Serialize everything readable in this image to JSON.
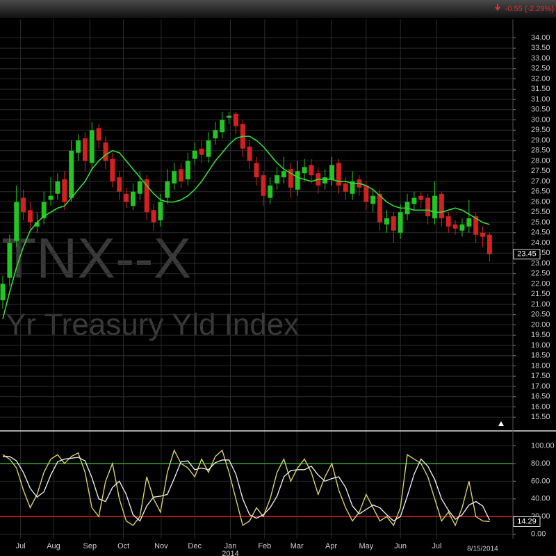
{
  "header": {
    "change": "-0.55 (-2.29%)"
  },
  "chart_data": [
    {
      "type": "candlestick",
      "watermark": [
        "TNX--X",
        "Yr Treasury Yld Index"
      ],
      "year_label": "2014",
      "last_date": "8/15/2014",
      "up_color": "#22c522",
      "down_color": "#d42020",
      "grid": true,
      "xlim": [
        0,
        74
      ],
      "xticks": [
        {
          "value": 2.6,
          "label": "Jul"
        },
        {
          "value": 7.4,
          "label": "Aug"
        },
        {
          "value": 12.7,
          "label": "Sep"
        },
        {
          "value": 17.6,
          "label": "Oct"
        },
        {
          "value": 23.1,
          "label": "Nov"
        },
        {
          "value": 28,
          "label": "Dec"
        },
        {
          "value": 33.2,
          "label": "Jan"
        },
        {
          "value": 38.2,
          "label": "Feb"
        },
        {
          "value": 42.9,
          "label": "Mar"
        },
        {
          "value": 47.9,
          "label": "Apr"
        },
        {
          "value": 53,
          "label": "May"
        },
        {
          "value": 58,
          "label": "Jun"
        },
        {
          "value": 63.3,
          "label": "Jul"
        }
      ],
      "ylim": [
        15,
        34.9
      ],
      "yticks": [
        {
          "value": 15.5,
          "label": "15.50"
        },
        {
          "value": 16,
          "label": "16.00"
        },
        {
          "value": 16.5,
          "label": "16.50"
        },
        {
          "value": 17,
          "label": "17.00"
        },
        {
          "value": 17.5,
          "label": "17.50"
        },
        {
          "value": 18,
          "label": "18.00"
        },
        {
          "value": 18.5,
          "label": "18.50"
        },
        {
          "value": 19,
          "label": "19.00"
        },
        {
          "value": 19.5,
          "label": "19.50"
        },
        {
          "value": 20,
          "label": "20.00"
        },
        {
          "value": 20.5,
          "label": "20.50"
        },
        {
          "value": 21,
          "label": "21.00"
        },
        {
          "value": 21.5,
          "label": "21.50"
        },
        {
          "value": 22,
          "label": "22.00"
        },
        {
          "value": 22.5,
          "label": "22.50"
        },
        {
          "value": 23,
          "label": "23.00"
        },
        {
          "value": 23.5,
          "label": "23.50"
        },
        {
          "value": 24,
          "label": "24.00"
        },
        {
          "value": 24.5,
          "label": "24.50"
        },
        {
          "value": 25,
          "label": "25.00"
        },
        {
          "value": 25.5,
          "label": "25.50"
        },
        {
          "value": 26,
          "label": "26.00"
        },
        {
          "value": 26.5,
          "label": "26.50"
        },
        {
          "value": 27,
          "label": "27.00"
        },
        {
          "value": 27.5,
          "label": "27.50"
        },
        {
          "value": 28,
          "label": "28.00"
        },
        {
          "value": 28.5,
          "label": "28.50"
        },
        {
          "value": 29,
          "label": "29.00"
        },
        {
          "value": 29.5,
          "label": "29.50"
        },
        {
          "value": 30,
          "label": "30.00"
        },
        {
          "value": 30.5,
          "label": "30.50"
        },
        {
          "value": 31,
          "label": "31.00"
        },
        {
          "value": 31.5,
          "label": "31.50"
        },
        {
          "value": 32,
          "label": "32.00"
        },
        {
          "value": 32.5,
          "label": "32.50"
        },
        {
          "value": 33,
          "label": "33.00"
        },
        {
          "value": 33.5,
          "label": "33.50"
        },
        {
          "value": 34,
          "label": "34.00"
        }
      ],
      "open": [
        21.2,
        22.3,
        24.1,
        26.2,
        25.6,
        24.8,
        25.2,
        26.1,
        26.4,
        27.1,
        26.2,
        28.4,
        29.1,
        27.9,
        29.6,
        28.9,
        28.1,
        27.2,
        26.4,
        25.8,
        26.4,
        27.1,
        25.6,
        25.1,
        26.2,
        26.9,
        27.6,
        27.1,
        28.1,
        28.6,
        28.2,
        29.1,
        29.4,
        30.1,
        30.3,
        29.8,
        28.7,
        27.9,
        27.3,
        26.2,
        26.9,
        27.2,
        27.6,
        26.6,
        27.4,
        27.8,
        27.4,
        26.9,
        27.1,
        27.9,
        26.9,
        26.4,
        27.1,
        26.8,
        25.9,
        26.4,
        24.9,
        25.3,
        24.5,
        25.4,
        25.9,
        26.3,
        26.2,
        25.2,
        26.4,
        25.3,
        24.9,
        24.6,
        24.8,
        25.3,
        24.5,
        24.4
      ],
      "high": [
        22.4,
        24.4,
        26.8,
        26.6,
        26,
        25.5,
        26.5,
        27.2,
        27.4,
        27.5,
        29,
        29.3,
        29.4,
        29.9,
        29.8,
        29.2,
        28.4,
        27.5,
        26.7,
        26.9,
        27.5,
        27.3,
        25.9,
        26.4,
        27.6,
        27.9,
        27.9,
        28.4,
        28.9,
        29,
        29.4,
        29.9,
        30.4,
        30.4,
        30.4,
        30,
        29,
        28.2,
        27.5,
        27.2,
        27.7,
        28.2,
        27.9,
        28,
        28.1,
        28.1,
        27.7,
        27.6,
        28.2,
        28.1,
        27.2,
        27.5,
        27.3,
        27,
        26.6,
        26.6,
        25.6,
        25.5,
        25.9,
        26.4,
        26.5,
        26.5,
        26.4,
        27,
        26.5,
        25.5,
        25.1,
        25.2,
        26.1,
        25.5,
        24.8,
        24.5
      ],
      "low": [
        20.8,
        21.9,
        23.8,
        25.1,
        24.6,
        24.5,
        24.9,
        25.8,
        26.1,
        25.6,
        26,
        28,
        27.5,
        27.6,
        28.6,
        27.6,
        26.7,
        26.1,
        25.7,
        25.6,
        26.1,
        25.1,
        24.6,
        24.8,
        25.9,
        26.6,
        26.7,
        26.8,
        27.8,
        27.9,
        27.9,
        28.8,
        29.1,
        29.8,
        29.3,
        28.2,
        27.6,
        26.8,
        25.8,
        25.9,
        26.6,
        26.9,
        26.2,
        26.3,
        27,
        26.9,
        26.4,
        26.6,
        26.8,
        26.4,
        26.1,
        26.1,
        26.3,
        25.6,
        25.5,
        24.6,
        24.5,
        24,
        24.2,
        25.1,
        25.6,
        25.7,
        24.9,
        24.9,
        24.8,
        24.5,
        24.4,
        24.3,
        24.5,
        24,
        23.8,
        23.1
      ],
      "close": [
        22,
        24,
        26,
        25.5,
        25,
        25,
        26,
        26.3,
        27,
        26,
        28.5,
        29,
        28,
        29.5,
        29,
        28,
        27,
        26.5,
        26,
        26.5,
        27,
        25.5,
        25,
        26,
        27,
        27.5,
        27,
        28,
        28.5,
        28.3,
        29,
        29.5,
        30,
        30.2,
        29.7,
        28.6,
        28,
        27.2,
        26.3,
        26.8,
        27.3,
        27.5,
        26.7,
        27.5,
        27.7,
        27.3,
        26.8,
        27.2,
        27.8,
        26.8,
        26.5,
        27,
        26.7,
        26,
        26.3,
        25,
        25.2,
        24.6,
        25.5,
        26,
        26.2,
        26.1,
        25.3,
        26.3,
        25.2,
        24.8,
        24.7,
        24.9,
        25.2,
        24.4,
        24.3,
        23.45
      ],
      "ma": {
        "color": "#33dd33",
        "values": [
          20.3,
          21.6,
          22.8,
          23.8,
          24.6,
          25,
          25.3,
          25.5,
          25.7,
          25.8,
          26.2,
          26.6,
          27,
          27.6,
          28,
          28.3,
          28.5,
          28.4,
          28,
          27.6,
          27.2,
          26.8,
          26.4,
          26.1,
          26,
          26,
          26.1,
          26.3,
          26.6,
          27,
          27.5,
          28,
          28.4,
          28.8,
          29.1,
          29.2,
          29.2,
          29,
          28.7,
          28.3,
          27.9,
          27.6,
          27.4,
          27.2,
          27.1,
          27,
          27.1,
          27.1,
          27.1,
          27,
          27,
          26.9,
          26.9,
          26.8,
          26.6,
          26.3,
          26,
          25.8,
          25.7,
          25.7,
          25.6,
          25.6,
          25.6,
          25.5,
          25.5,
          25.6,
          25.7,
          25.6,
          25.4,
          25.2,
          25,
          24.9
        ]
      }
    },
    {
      "type": "line",
      "grid": true,
      "xlim": [
        0,
        74
      ],
      "ylim": [
        -5,
        113
      ],
      "yticks": [
        {
          "value": 0,
          "label": "0.00"
        },
        {
          "value": 20,
          "label": "20.00"
        },
        {
          "value": 40,
          "label": "40.00"
        },
        {
          "value": 60,
          "label": "60.00"
        },
        {
          "value": 80,
          "label": "80.00"
        },
        {
          "value": 100,
          "label": "100.00"
        }
      ],
      "levels": [
        {
          "value": 80,
          "color": "#2fa82f"
        },
        {
          "value": 20,
          "color": "#c81e1e"
        }
      ],
      "series": [
        {
          "color": "#d8d060",
          "values": [
            90,
            85,
            75,
            50,
            30,
            45,
            70,
            85,
            90,
            80,
            88,
            92,
            70,
            30,
            20,
            60,
            80,
            40,
            15,
            10,
            20,
            65,
            40,
            25,
            70,
            95,
            80,
            75,
            65,
            85,
            70,
            88,
            95,
            70,
            40,
            10,
            15,
            30,
            20,
            40,
            70,
            85,
            60,
            75,
            85,
            70,
            45,
            65,
            80,
            50,
            30,
            15,
            25,
            45,
            30,
            15,
            20,
            10,
            30,
            90,
            85,
            80,
            65,
            40,
            15,
            25,
            10,
            30,
            60,
            20,
            15,
            14.29
          ]
        },
        {
          "color": "#e8e8e8",
          "values": [
            88,
            88,
            83,
            70,
            52,
            42,
            48,
            67,
            82,
            85,
            86,
            87,
            83,
            64,
            40,
            37,
            53,
            60,
            45,
            22,
            15,
            32,
            42,
            43,
            45,
            63,
            82,
            83,
            73,
            75,
            73,
            81,
            84,
            84,
            68,
            40,
            22,
            18,
            22,
            30,
            43,
            65,
            72,
            73,
            73,
            77,
            67,
            60,
            63,
            65,
            53,
            32,
            23,
            28,
            33,
            30,
            22,
            15,
            20,
            43,
            68,
            85,
            77,
            62,
            40,
            27,
            17,
            22,
            33,
            37,
            32,
            16
          ]
        }
      ]
    }
  ]
}
